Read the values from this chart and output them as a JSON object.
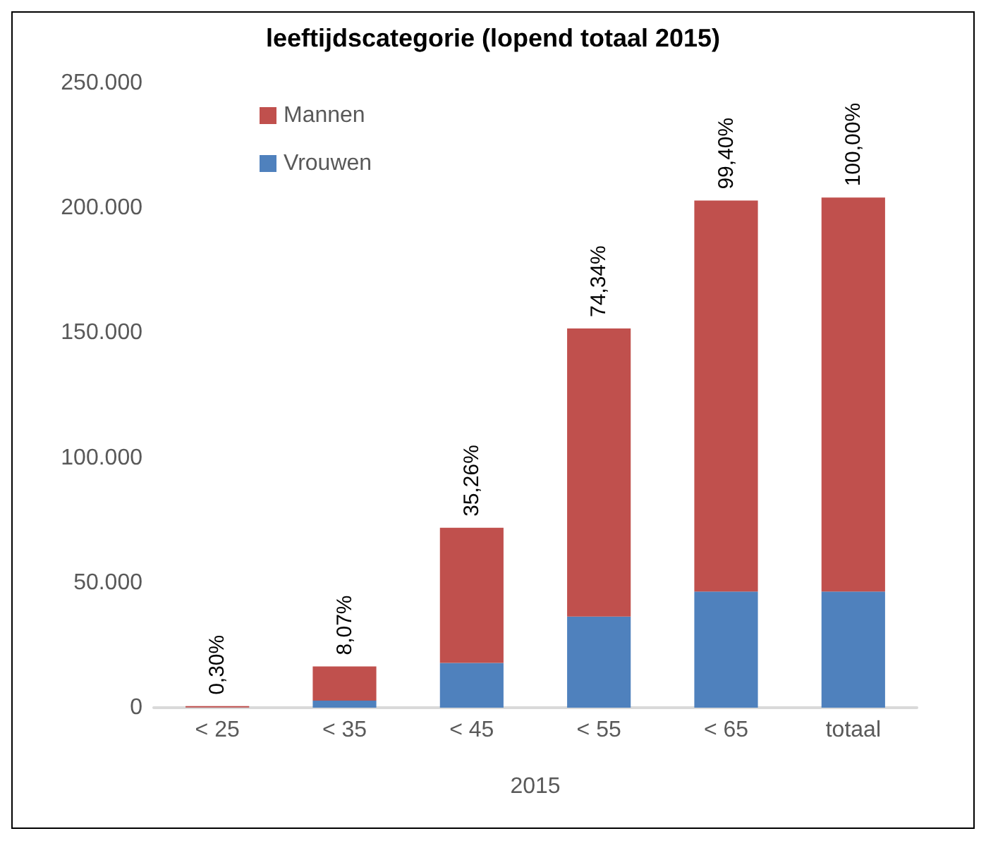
{
  "chart_data": {
    "type": "bar",
    "title": "leeftijdscategorie (lopend totaal 2015)",
    "xlabel": "2015",
    "categories": [
      "< 25",
      "< 35",
      "< 45",
      "< 55",
      "< 65",
      "totaal"
    ],
    "stacked": true,
    "series": [
      {
        "name": "Vrouwen",
        "color": "#4f81bd",
        "values": [
          100,
          2800,
          17900,
          36500,
          46500,
          46500
        ]
      },
      {
        "name": "Mannen",
        "color": "#c0504d",
        "values": [
          500,
          13700,
          54100,
          115300,
          156500,
          157700
        ]
      }
    ],
    "annotations": [
      {
        "text": "0,30%",
        "x": "< 25",
        "y": 600
      },
      {
        "text": "8,07%",
        "x": "< 35",
        "y": 16500
      },
      {
        "text": "35,26%",
        "x": "< 45",
        "y": 72000
      },
      {
        "text": "74,34%",
        "x": "< 55",
        "y": 151800
      },
      {
        "text": "99,40%",
        "x": "< 65",
        "y": 203000
      },
      {
        "text": "100,00%",
        "x": "totaal",
        "y": 204200
      }
    ],
    "ylim": [
      0,
      250000
    ],
    "yticks": [
      {
        "value": 0,
        "label": "0"
      },
      {
        "value": 50000,
        "label": "50.000"
      },
      {
        "value": 100000,
        "label": "100.000"
      },
      {
        "value": 150000,
        "label": "150.000"
      },
      {
        "value": 200000,
        "label": "200.000"
      },
      {
        "value": 250000,
        "label": "250.000"
      }
    ],
    "grid": false,
    "legend": "top left"
  }
}
